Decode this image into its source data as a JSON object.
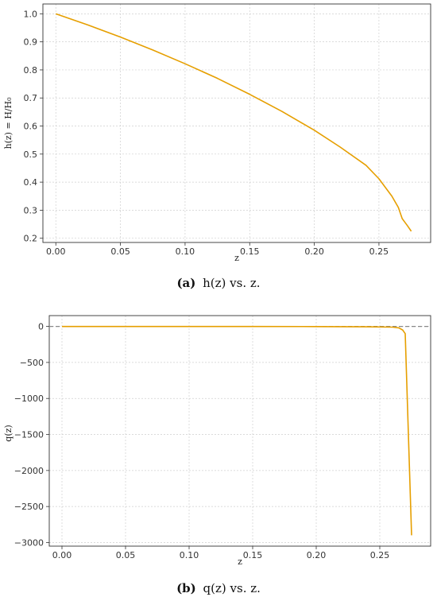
{
  "chart_data": [
    {
      "type": "line",
      "xlabel": "z",
      "ylabel": "h(z) = H/H₀",
      "xlim": [
        -0.01,
        0.29
      ],
      "ylim": [
        0.185,
        1.035
      ],
      "xticks": [
        "0.00",
        "0.05",
        "0.10",
        "0.15",
        "0.20",
        "0.25"
      ],
      "xtick_values": [
        0,
        0.05,
        0.1,
        0.15,
        0.2,
        0.25
      ],
      "yticks": [
        "0.2",
        "0.3",
        "0.4",
        "0.5",
        "0.6",
        "0.7",
        "0.8",
        "0.9",
        "1.0"
      ],
      "ytick_values": [
        0.2,
        0.3,
        0.4,
        0.5,
        0.6,
        0.7,
        0.8,
        0.9,
        1.0
      ],
      "grid": true,
      "color": "#e69f00",
      "caption": {
        "label": "(a)",
        "text": "h(z) vs. z."
      },
      "series": [
        {
          "x": [
            0,
            0.025,
            0.05,
            0.075,
            0.1,
            0.125,
            0.15,
            0.175,
            0.2,
            0.22,
            0.24,
            0.25,
            0.26,
            0.265,
            0.268,
            0.272,
            0.275
          ],
          "y": [
            1.0,
            0.96,
            0.917,
            0.871,
            0.822,
            0.77,
            0.713,
            0.652,
            0.585,
            0.525,
            0.46,
            0.412,
            0.35,
            0.31,
            0.27,
            0.245,
            0.225
          ]
        }
      ]
    },
    {
      "type": "line",
      "xlabel": "z",
      "ylabel": "q(z)",
      "xlim": [
        -0.01,
        0.29
      ],
      "ylim": [
        -3050,
        150
      ],
      "xticks": [
        "0.00",
        "0.05",
        "0.10",
        "0.15",
        "0.20",
        "0.25"
      ],
      "xtick_values": [
        0,
        0.05,
        0.1,
        0.15,
        0.2,
        0.25
      ],
      "yticks": [
        "0",
        "−500",
        "−1000",
        "−1500",
        "−2000",
        "−2500",
        "−3000"
      ],
      "ytick_values": [
        0,
        -500,
        -1000,
        -1500,
        -2000,
        -2500,
        -3000
      ],
      "grid": true,
      "reference_line_y": 0,
      "color": "#e69f00",
      "caption": {
        "label": "(b)",
        "text": "q(z) vs. z."
      },
      "series": [
        {
          "x": [
            0,
            0.05,
            0.1,
            0.15,
            0.2,
            0.24,
            0.26,
            0.265,
            0.268,
            0.27,
            0.275
          ],
          "y": [
            -0.5,
            -0.6,
            -0.8,
            -1,
            -2,
            -5,
            -10,
            -20,
            -50,
            -100,
            -2900
          ]
        }
      ]
    }
  ]
}
